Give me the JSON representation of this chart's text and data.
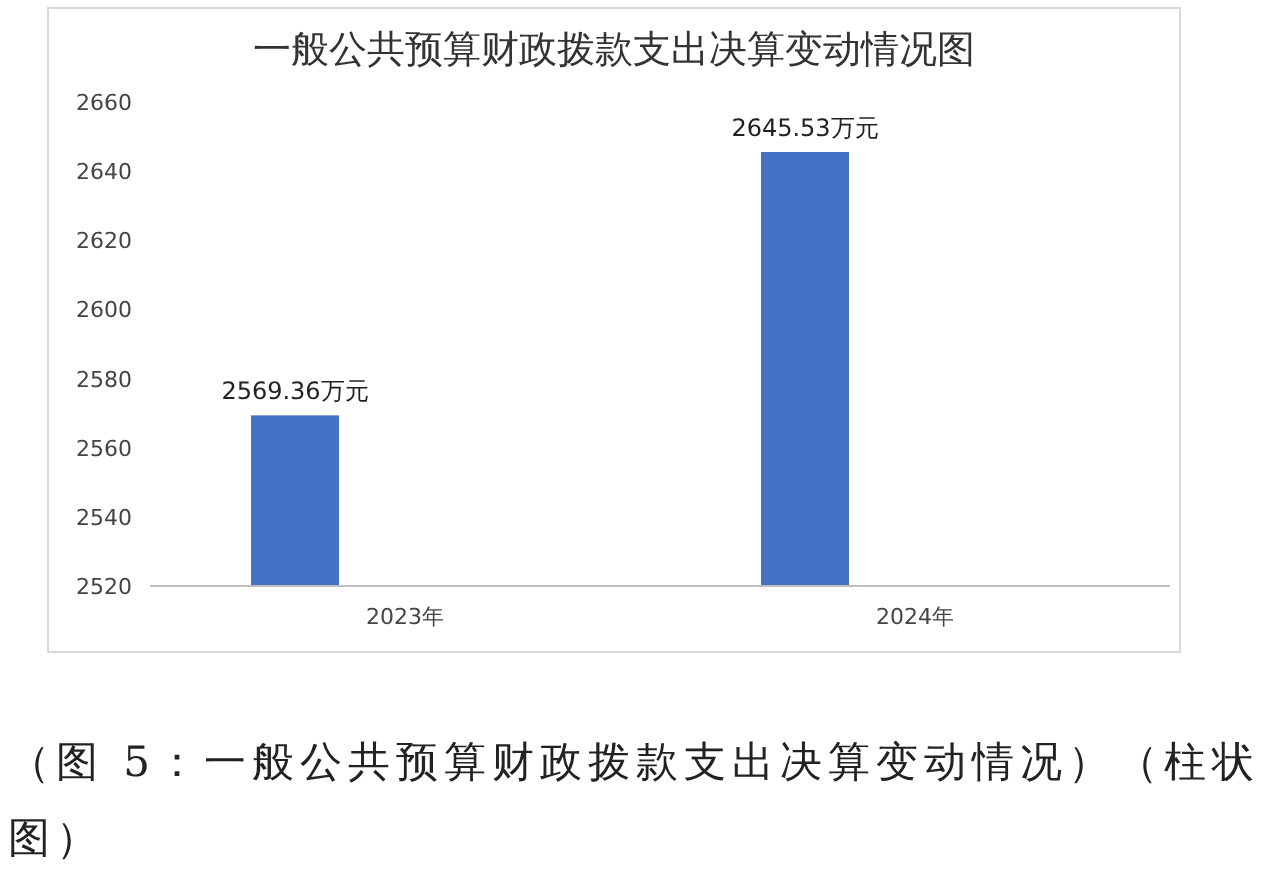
{
  "chart_data": {
    "type": "bar",
    "title": "一般公共预算财政拨款支出决算变动情况图",
    "categories": [
      "2023年",
      "2024年"
    ],
    "values": [
      2569.36,
      2645.53
    ],
    "value_labels": [
      "2569.36万元",
      "2645.53万元"
    ],
    "color": "#4472c4",
    "ylim": [
      2520,
      2660
    ],
    "yticks": [
      2520,
      2540,
      2560,
      2580,
      2600,
      2620,
      2640,
      2660
    ],
    "grid": false,
    "annotations": [
      "（图 5：一般公共预算财政拨款支出决算变动情况）（柱状图）"
    ]
  }
}
